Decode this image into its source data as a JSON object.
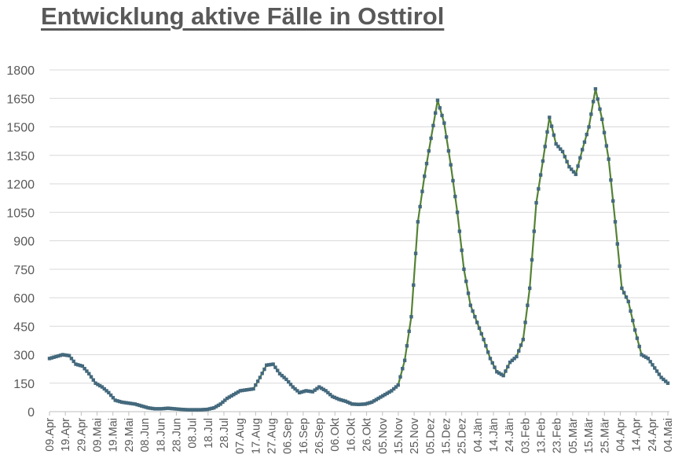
{
  "title": "Entwicklung aktive Fälle in Osttirol",
  "colors": {
    "line": "#548235",
    "marker": "#44697d",
    "grid": "#d9d9d9",
    "text": "#595959"
  },
  "chart_data": {
    "type": "line",
    "title": "Entwicklung aktive Fälle in Osttirol",
    "xlabel": "",
    "ylabel": "",
    "ylim": [
      0,
      1800
    ],
    "yticks": [
      0,
      150,
      300,
      450,
      600,
      750,
      900,
      1050,
      1200,
      1350,
      1500,
      1650,
      1800
    ],
    "grid": true,
    "legend": "none",
    "x_tick_labels": [
      "09.Apr",
      "19.Apr",
      "29.Apr",
      "09.Mai",
      "19.Mai",
      "29.Mai",
      "08.Jun",
      "18.Jun",
      "28.Jun",
      "08.Jul",
      "18.Jul",
      "28.Jul",
      "07.Aug",
      "17.Aug",
      "27.Aug",
      "06.Sep",
      "16.Sep",
      "26.Sep",
      "06.Okt",
      "16.Okt",
      "26.Okt",
      "05.Nov",
      "15.Nov",
      "25.Nov",
      "05.Dez",
      "15.Dez",
      "25.Dez",
      "04.Jän",
      "14.Jän",
      "24.Jän",
      "03.Feb",
      "13.Feb",
      "23.Feb",
      "05.Mär",
      "15.Mär",
      "25.Mär",
      "04.Apr",
      "14.Apr",
      "24.Apr",
      "04.Mai"
    ],
    "x_step_days": 5,
    "series": [
      {
        "name": "aktive Fälle",
        "values": [
          280,
          290,
          300,
          295,
          250,
          240,
          200,
          150,
          130,
          100,
          60,
          50,
          45,
          40,
          30,
          20,
          15,
          15,
          18,
          15,
          12,
          10,
          10,
          10,
          12,
          20,
          40,
          70,
          90,
          110,
          115,
          120,
          180,
          245,
          250,
          200,
          170,
          130,
          100,
          110,
          105,
          130,
          110,
          80,
          65,
          55,
          40,
          38,
          40,
          50,
          70,
          90,
          110,
          140,
          270,
          500,
          1000,
          1240,
          1440,
          1640,
          1520,
          1300,
          1050,
          750,
          560,
          470,
          380,
          280,
          210,
          190,
          260,
          290,
          380,
          650,
          1100,
          1320,
          1550,
          1410,
          1370,
          1290,
          1250,
          1380,
          1500,
          1700,
          1540,
          1330,
          1000,
          650,
          580,
          430,
          300,
          280,
          230,
          180,
          150
        ]
      }
    ]
  }
}
